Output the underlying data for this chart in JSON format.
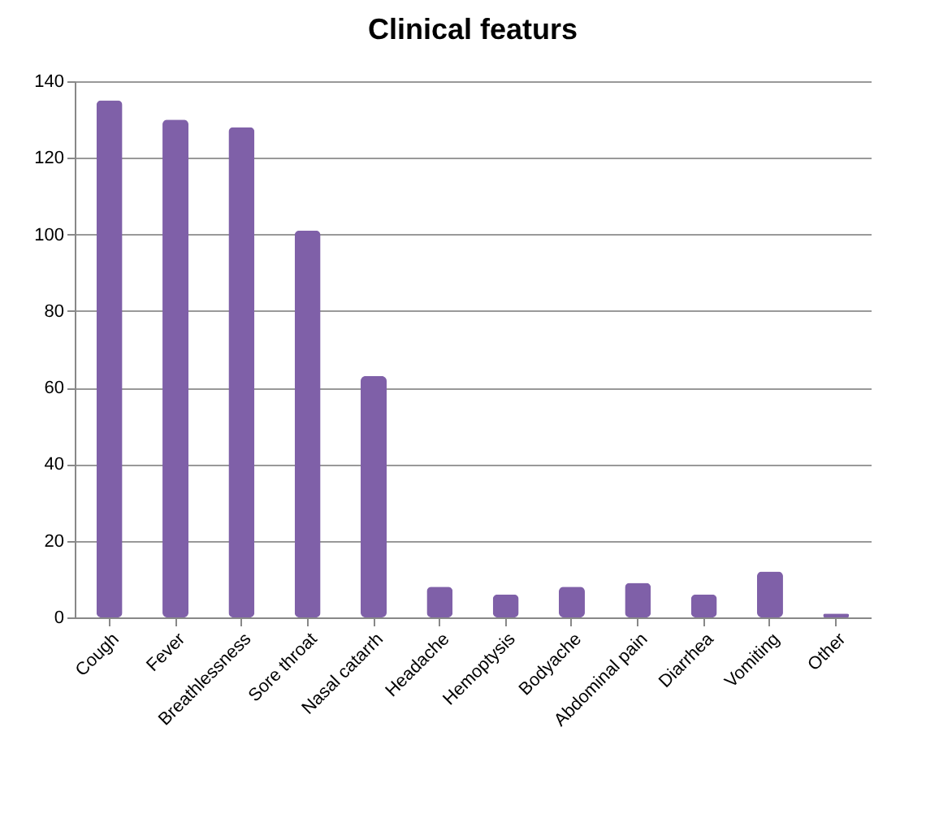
{
  "chart_data": {
    "type": "bar",
    "title": "Clinical featurs",
    "categories": [
      "Cough",
      "Fever",
      "Breathlessness",
      "Sore throat",
      "Nasal catarrh",
      "Headache",
      "Hemoptysis",
      "Bodyache",
      "Abdominal pain",
      "Diarrhea",
      "Vomiting",
      "Other"
    ],
    "values": [
      135,
      130,
      128,
      101,
      63,
      8,
      6,
      8,
      9,
      6,
      12,
      1
    ],
    "color": "#7f60a8",
    "ylim": [
      0,
      140
    ],
    "yticks": [
      0,
      20,
      40,
      60,
      80,
      100,
      120,
      140
    ],
    "grid": "y"
  }
}
